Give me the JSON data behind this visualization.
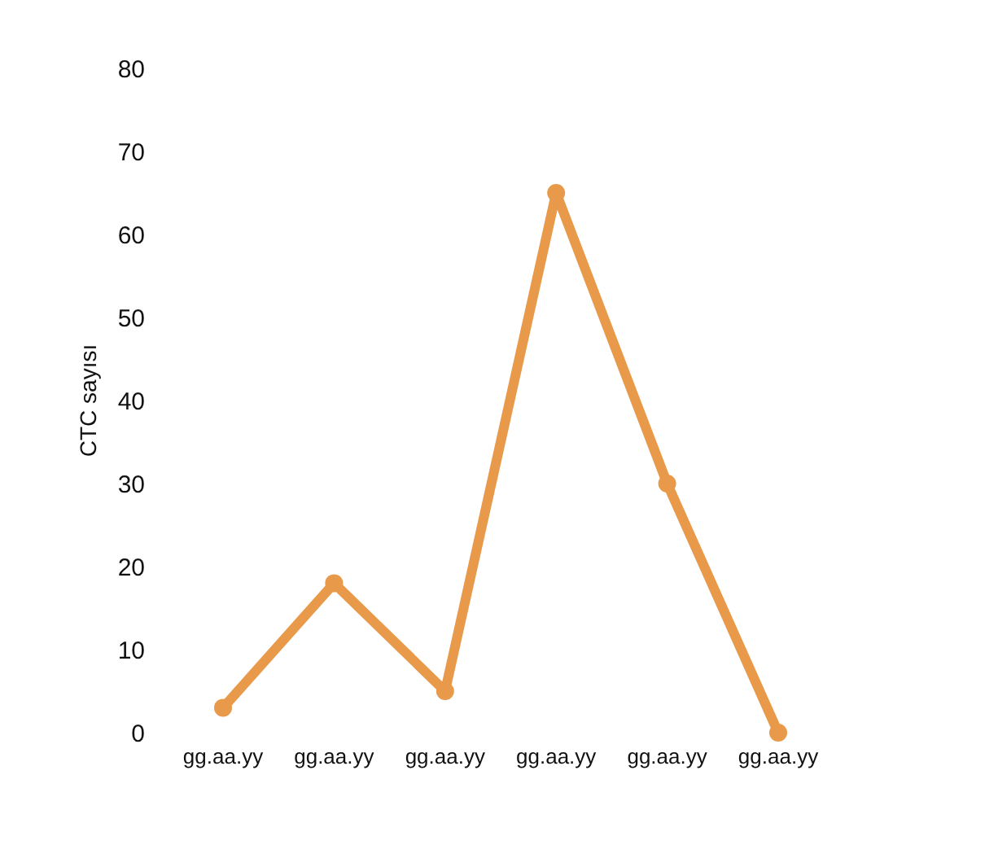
{
  "chart_data": {
    "type": "line",
    "ylabel": "CTC sayısı",
    "categories": [
      "gg.aa.yy",
      "gg.aa.yy",
      "gg.aa.yy",
      "gg.aa.yy",
      "gg.aa.yy",
      "gg.aa.yy"
    ],
    "series": [
      {
        "color": "#e8994a",
        "values": [
          3,
          18,
          5,
          65,
          30,
          0
        ]
      }
    ],
    "ylim": [
      0,
      80
    ],
    "yticks": [
      0,
      10,
      20,
      30,
      40,
      50,
      60,
      70,
      80
    ],
    "marker": "circle",
    "line_style": "solid"
  }
}
